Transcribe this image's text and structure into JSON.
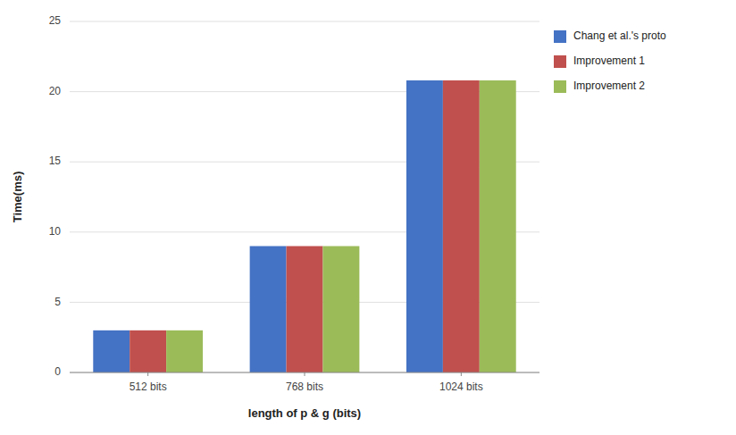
{
  "chart_data": {
    "type": "bar",
    "xlabel": "length of p & g (bits)",
    "ylabel": "Time(ms)",
    "categories": [
      "512 bits",
      "768 bits",
      "1024 bits"
    ],
    "series": [
      {
        "name": "Chang et al.'s proto",
        "color": "#4472C4",
        "values": [
          3.0,
          9.0,
          20.8
        ]
      },
      {
        "name": "Improvement 1",
        "color": "#C0504D",
        "values": [
          3.0,
          9.0,
          20.8
        ]
      },
      {
        "name": "Improvement 2",
        "color": "#9BBB59",
        "values": [
          3.0,
          9.0,
          20.8
        ]
      }
    ],
    "ylim": [
      0,
      25
    ],
    "yticks": [
      0,
      5,
      10,
      15,
      20,
      25
    ],
    "grid": true,
    "legend": "right"
  }
}
